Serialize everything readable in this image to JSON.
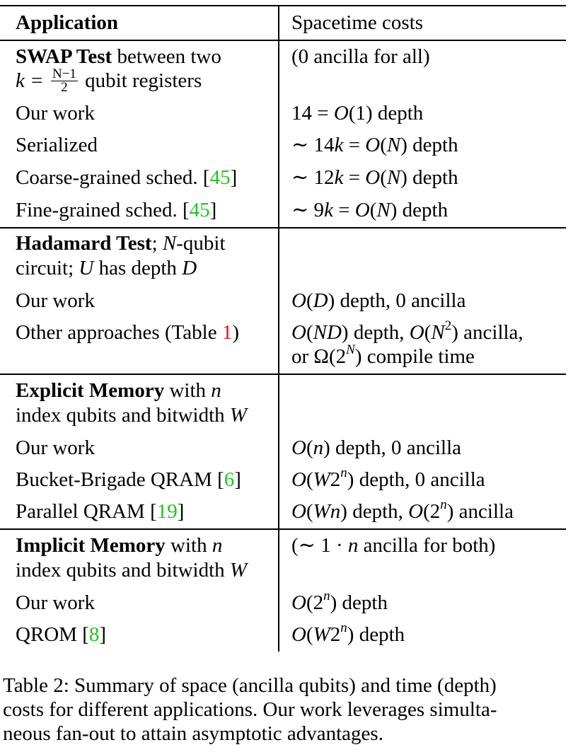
{
  "header": {
    "col1": "Application",
    "col2": "Spacetime costs"
  },
  "sections": [
    {
      "title_bold": "SWAP Test",
      "title_rest": " between two",
      "title_line2_pre": "k = ",
      "frac_num": "N−1",
      "frac_den": "2",
      "title_line2_post": " qubit registers",
      "note": "(0 ancilla for all)",
      "rows": [
        {
          "app": "Our work",
          "cost": "14 = O(1) depth"
        },
        {
          "app": "Serialized",
          "cost": "∼ 14k = O(N) depth"
        },
        {
          "app_pre": "Coarse-grained sched. [",
          "ref": "45",
          "app_post": "]",
          "cost": "∼ 12k = O(N) depth"
        },
        {
          "app_pre": "Fine-grained sched. [",
          "ref": "45",
          "app_post": "]",
          "cost": "∼ 9k = O(N) depth"
        }
      ]
    },
    {
      "title_bold": "Hadamard Test",
      "title_rest": "; N-qubit",
      "title_line2": "circuit; U has depth D",
      "rows": [
        {
          "app": "Our work",
          "cost": "O(D) depth, 0 ancilla"
        },
        {
          "app_pre": "Other approaches (Table ",
          "ref": "1",
          "app_post": ")",
          "cost": "O(ND) depth, O(N2) ancilla,",
          "cost2": "or Ω(2N) compile time"
        }
      ]
    },
    {
      "title_bold": "Explicit Memory",
      "title_rest": " with n",
      "title_line2": "index qubits and bitwidth W",
      "rows": [
        {
          "app": "Our work",
          "cost": "O(n) depth, 0 ancilla"
        },
        {
          "app_pre": "Bucket-Brigade QRAM [",
          "ref": "6",
          "app_post": "]",
          "cost": "O(W2n) depth, 0 ancilla"
        },
        {
          "app_pre": "Parallel QRAM [",
          "ref": "19",
          "app_post": "]",
          "cost": "O(Wn) depth, O(2n) ancilla"
        }
      ]
    },
    {
      "title_bold": "Implicit Memory",
      "title_rest": " with n",
      "title_line2": "index qubits and bitwidth W",
      "note": "(∼ 1 · n ancilla for both)",
      "rows": [
        {
          "app": "Our work",
          "cost": "O(2n) depth"
        },
        {
          "app_pre": "QROM [",
          "ref": "8",
          "app_post": "]",
          "cost": "O(W2n) depth"
        }
      ]
    }
  ],
  "caption": "Table 2: Summary of space (ancilla qubits) and time (depth) costs for different applications. Our work leverages simultaneous fan-out to attain asymptotic advantages.",
  "caption_lines": [
    "Table 2: Summary of space (ancilla qubits) and time (depth)",
    "costs for different applications. Our work leverages simulta-",
    "neous fan-out to attain asymptotic advantages."
  ],
  "colors": {
    "ref_green": "#22c422",
    "ref_red": "#e0161b"
  }
}
